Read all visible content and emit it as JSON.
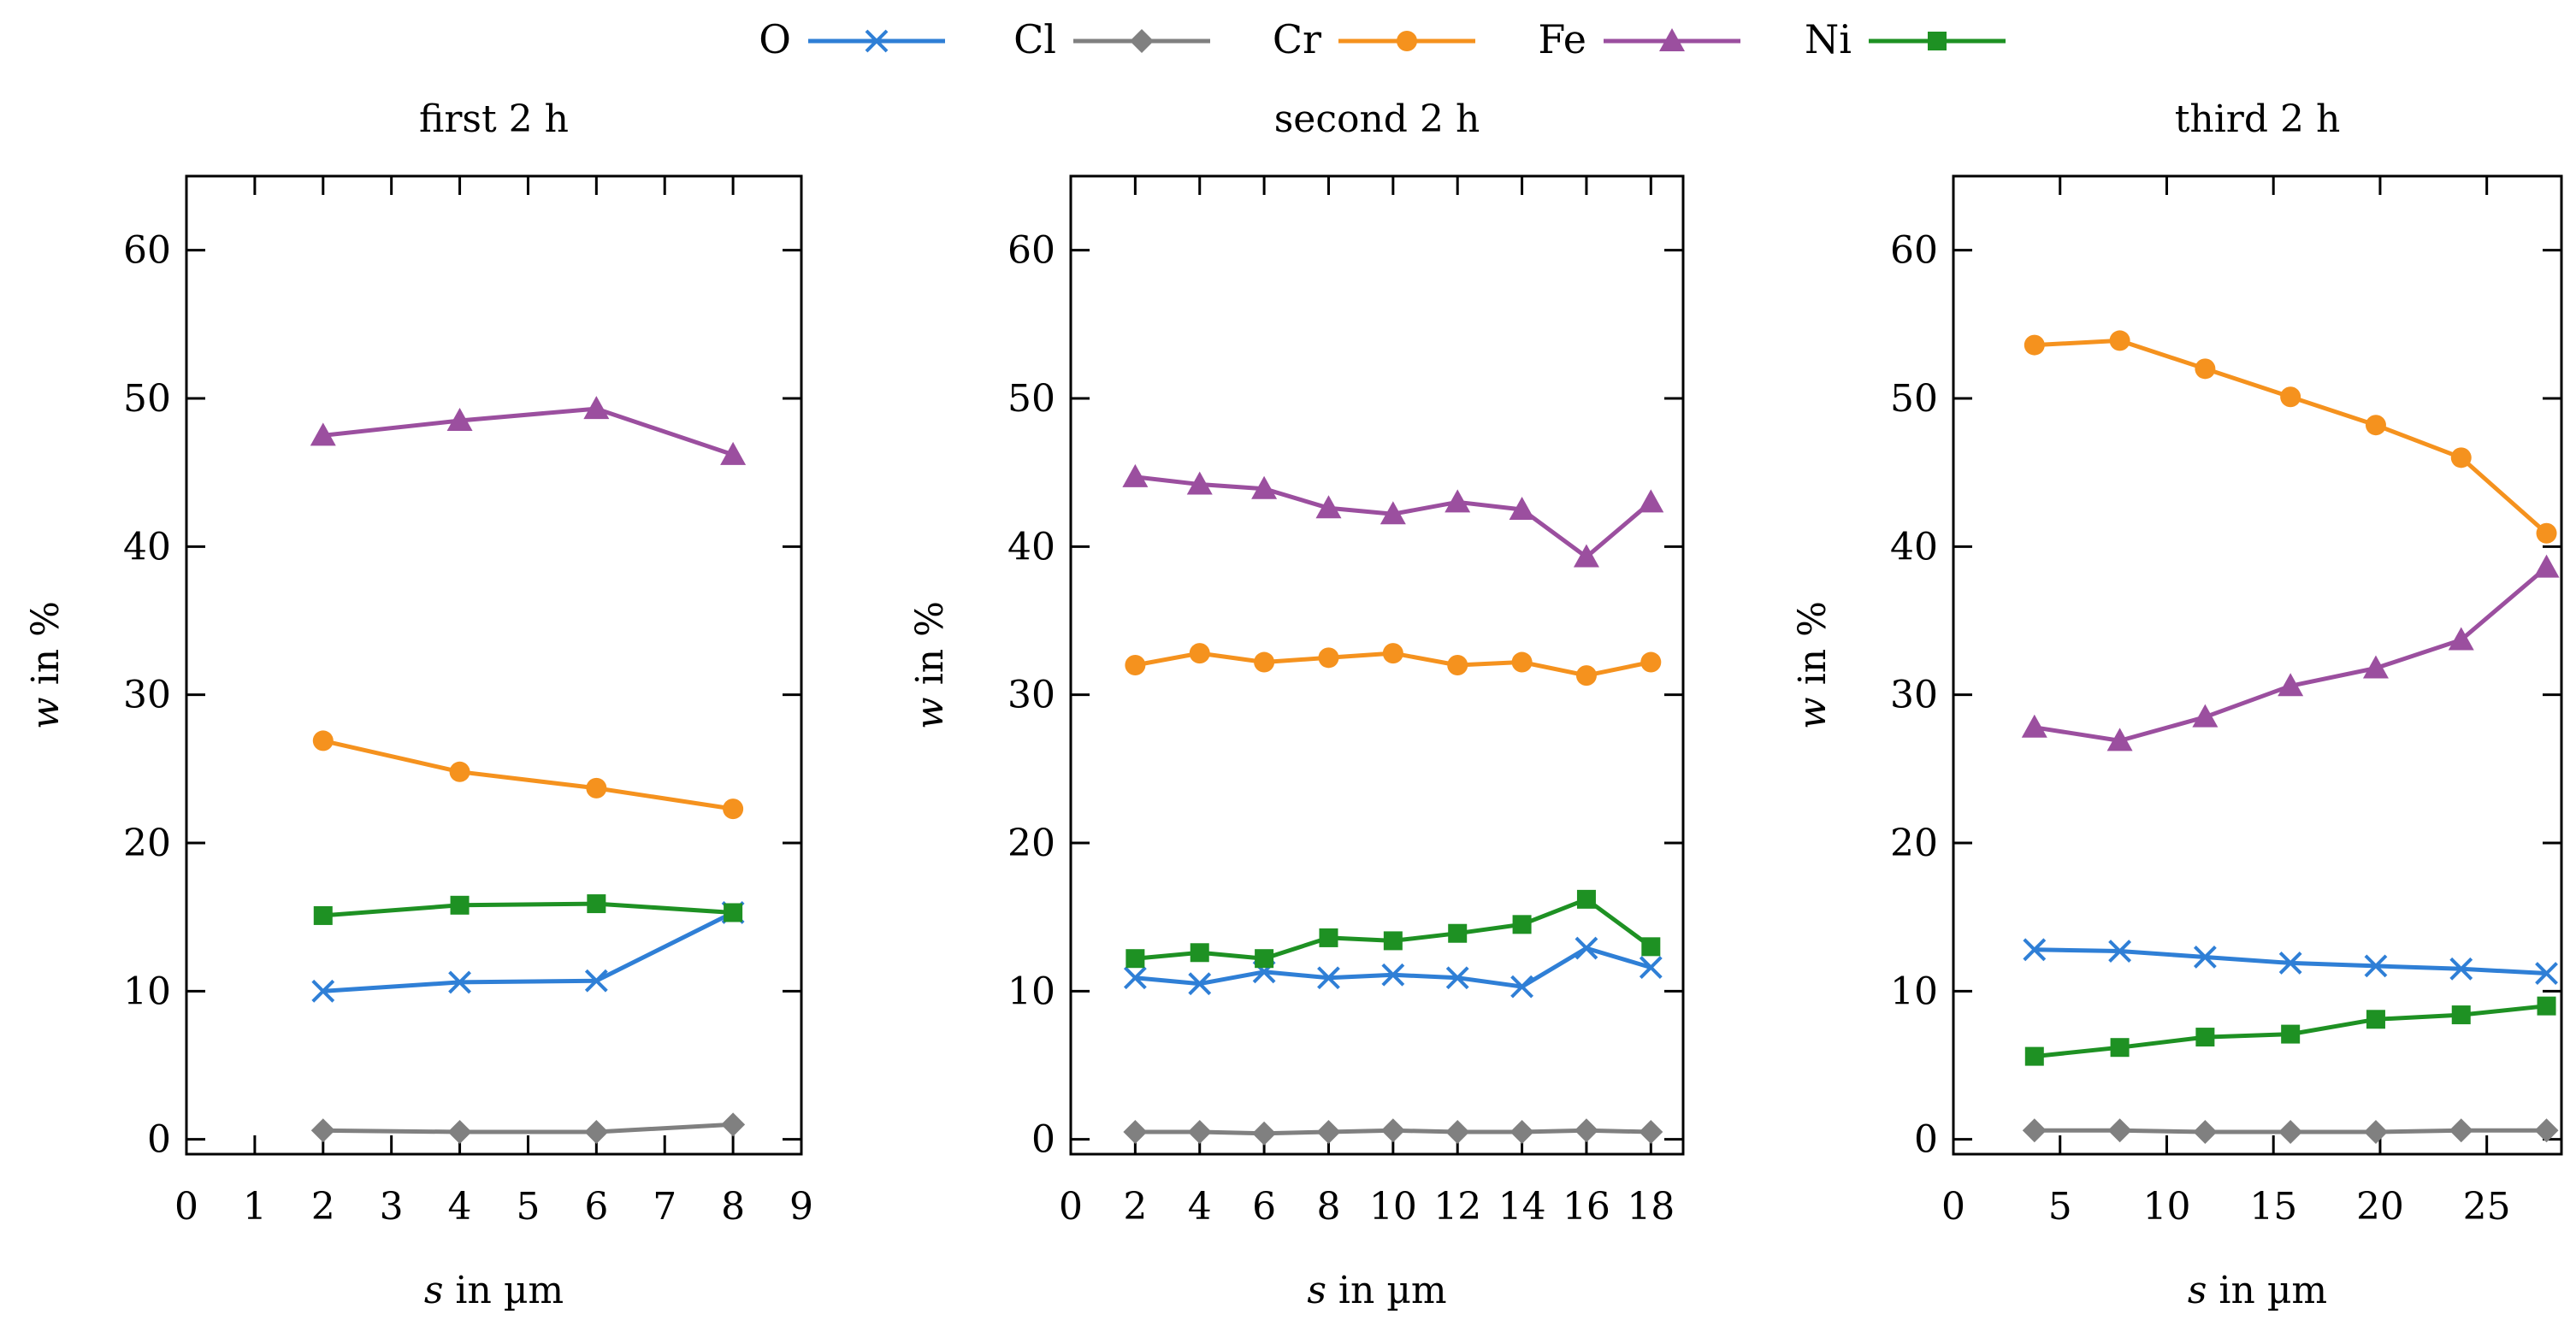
{
  "chart_data": [
    {
      "type": "line",
      "title": "first 2 h",
      "xlabel_var": "s",
      "xlabel_rest": " in µm",
      "ylabel_var": "w",
      "ylabel_rest": " in %",
      "xlim": [
        0,
        9
      ],
      "ylim": [
        -1,
        65
      ],
      "xticks": [
        0,
        1,
        2,
        3,
        4,
        5,
        6,
        7,
        8,
        9
      ],
      "yticks": [
        0,
        10,
        20,
        30,
        40,
        50,
        60
      ],
      "x": [
        2,
        4,
        6,
        8
      ],
      "series": [
        {
          "name": "O",
          "values": [
            10.0,
            10.6,
            10.7,
            15.3
          ]
        },
        {
          "name": "Cl",
          "values": [
            0.6,
            0.5,
            0.5,
            1.0
          ]
        },
        {
          "name": "Cr",
          "values": [
            26.9,
            24.8,
            23.7,
            22.3
          ]
        },
        {
          "name": "Fe",
          "values": [
            47.5,
            48.5,
            49.3,
            46.2
          ]
        },
        {
          "name": "Ni",
          "values": [
            15.1,
            15.8,
            15.9,
            15.3
          ]
        }
      ]
    },
    {
      "type": "line",
      "title": "second 2 h",
      "xlabel_var": "s",
      "xlabel_rest": " in µm",
      "ylabel_var": "w",
      "ylabel_rest": " in %",
      "xlim": [
        0,
        19
      ],
      "ylim": [
        -1,
        65
      ],
      "xticks": [
        0,
        2,
        4,
        6,
        8,
        10,
        12,
        14,
        16,
        18
      ],
      "yticks": [
        0,
        10,
        20,
        30,
        40,
        50,
        60
      ],
      "x": [
        2,
        4,
        6,
        8,
        10,
        12,
        14,
        16,
        18
      ],
      "series": [
        {
          "name": "O",
          "values": [
            10.9,
            10.5,
            11.3,
            10.9,
            11.1,
            10.9,
            10.3,
            12.9,
            11.6
          ]
        },
        {
          "name": "Cl",
          "values": [
            0.5,
            0.5,
            0.4,
            0.5,
            0.6,
            0.5,
            0.5,
            0.6,
            0.5
          ]
        },
        {
          "name": "Cr",
          "values": [
            32.0,
            32.8,
            32.2,
            32.5,
            32.8,
            32.0,
            32.2,
            31.3,
            32.2
          ]
        },
        {
          "name": "Fe",
          "values": [
            44.7,
            44.2,
            43.9,
            42.6,
            42.2,
            43.0,
            42.5,
            39.3,
            43.0
          ]
        },
        {
          "name": "Ni",
          "values": [
            12.2,
            12.6,
            12.2,
            13.6,
            13.4,
            13.9,
            14.5,
            16.2,
            13.0
          ]
        }
      ]
    },
    {
      "type": "line",
      "title": "third 2 h",
      "xlabel_var": "s",
      "xlabel_rest": " in µm",
      "ylabel_var": "w",
      "ylabel_rest": " in %",
      "xlim": [
        0,
        28.5
      ],
      "ylim": [
        -1,
        65
      ],
      "xticks": [
        0,
        5,
        10,
        15,
        20,
        25
      ],
      "yticks": [
        0,
        10,
        20,
        30,
        40,
        50,
        60
      ],
      "x": [
        3.8,
        7.8,
        11.8,
        15.8,
        19.8,
        23.8,
        27.8
      ],
      "series": [
        {
          "name": "O",
          "values": [
            12.8,
            12.7,
            12.3,
            11.9,
            11.7,
            11.5,
            11.2
          ]
        },
        {
          "name": "Cl",
          "values": [
            0.6,
            0.6,
            0.5,
            0.5,
            0.5,
            0.6,
            0.6
          ]
        },
        {
          "name": "Cr",
          "values": [
            53.6,
            53.9,
            52.0,
            50.1,
            48.2,
            46.0,
            40.9
          ]
        },
        {
          "name": "Fe",
          "values": [
            27.8,
            26.9,
            28.5,
            30.6,
            31.8,
            33.7,
            38.6
          ]
        },
        {
          "name": "Ni",
          "values": [
            5.6,
            6.2,
            6.9,
            7.1,
            8.1,
            8.4,
            9.0
          ]
        }
      ]
    }
  ],
  "legend": [
    {
      "name": "O",
      "color": "#2f7fd6",
      "marker": "x"
    },
    {
      "name": "Cl",
      "color": "#808080",
      "marker": "diamond"
    },
    {
      "name": "Cr",
      "color": "#f5921e",
      "marker": "circle"
    },
    {
      "name": "Fe",
      "color": "#9b4f9f",
      "marker": "triangle"
    },
    {
      "name": "Ni",
      "color": "#1e9123",
      "marker": "square"
    }
  ]
}
